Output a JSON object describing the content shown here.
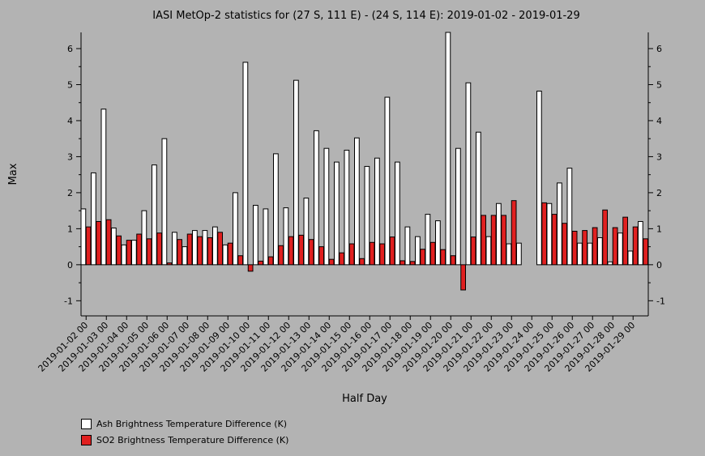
{
  "chart_data": {
    "type": "bar",
    "title": "IASI MetOp-2 statistics for (27 S, 111 E) - (24 S, 114 E): 2019-01-02 - 2019-01-29",
    "xlabel": "Half Day",
    "ylabel": "Max",
    "ylim": [
      -1.42,
      6.45
    ],
    "yticks": [
      -1,
      0,
      1,
      2,
      3,
      4,
      5,
      6
    ],
    "categories": [
      "2019-01-02 00",
      "2019-01-02 12",
      "2019-01-03 00",
      "2019-01-03 12",
      "2019-01-04 00",
      "2019-01-04 12",
      "2019-01-05 00",
      "2019-01-05 12",
      "2019-01-06 00",
      "2019-01-06 12",
      "2019-01-07 00",
      "2019-01-07 12",
      "2019-01-08 00",
      "2019-01-08 12",
      "2019-01-09 00",
      "2019-01-09 12",
      "2019-01-10 00",
      "2019-01-10 12",
      "2019-01-11 00",
      "2019-01-11 12",
      "2019-01-12 00",
      "2019-01-12 12",
      "2019-01-13 00",
      "2019-01-13 12",
      "2019-01-14 00",
      "2019-01-14 12",
      "2019-01-15 00",
      "2019-01-15 12",
      "2019-01-16 00",
      "2019-01-16 12",
      "2019-01-17 00",
      "2019-01-17 12",
      "2019-01-18 00",
      "2019-01-18 12",
      "2019-01-19 00",
      "2019-01-19 12",
      "2019-01-20 00",
      "2019-01-20 12",
      "2019-01-21 00",
      "2019-01-21 12",
      "2019-01-22 00",
      "2019-01-22 12",
      "2019-01-23 00",
      "2019-01-23 12",
      "2019-01-24 00",
      "2019-01-24 12",
      "2019-01-25 00",
      "2019-01-25 12",
      "2019-01-26 00",
      "2019-01-26 12",
      "2019-01-27 00",
      "2019-01-27 12",
      "2019-01-28 00",
      "2019-01-28 12",
      "2019-01-29 00",
      "2019-01-29 12"
    ],
    "xtick_labels": [
      "2019-01-02 00",
      "2019-01-03 00",
      "2019-01-04 00",
      "2019-01-05 00",
      "2019-01-06 00",
      "2019-01-07 00",
      "2019-01-08 00",
      "2019-01-09 00",
      "2019-01-10 00",
      "2019-01-11 00",
      "2019-01-12 00",
      "2019-01-13 00",
      "2019-01-14 00",
      "2019-01-15 00",
      "2019-01-16 00",
      "2019-01-17 00",
      "2019-01-18 00",
      "2019-01-19 00",
      "2019-01-20 00",
      "2019-01-21 00",
      "2019-01-22 00",
      "2019-01-23 00",
      "2019-01-24 00",
      "2019-01-25 00",
      "2019-01-26 00",
      "2019-01-27 00",
      "2019-01-28 00",
      "2019-01-29 00"
    ],
    "series": [
      {
        "name": "Ash Brightness Temperature Difference (K)",
        "color": "#ffffff",
        "values": [
          1.55,
          2.55,
          4.32,
          1.02,
          0.55,
          0.68,
          1.5,
          2.77,
          3.5,
          0.9,
          0.5,
          0.95,
          0.95,
          1.05,
          0.55,
          2.0,
          5.62,
          1.65,
          1.55,
          3.08,
          1.58,
          5.12,
          1.85,
          3.72,
          3.23,
          2.85,
          3.18,
          3.52,
          2.73,
          2.96,
          4.65,
          2.85,
          1.05,
          0.78,
          1.4,
          1.22,
          6.45,
          3.23,
          5.05,
          3.68,
          0.78,
          1.7,
          0.58,
          0.6,
          null,
          4.82,
          1.7,
          2.27,
          2.68,
          0.6,
          0.6,
          0.75,
          0.08,
          0.88,
          0.38,
          1.2
        ]
      },
      {
        "name": "SO2 Brightness Temperature Difference (K)",
        "color": "#e02020",
        "values": [
          1.05,
          1.2,
          1.25,
          0.8,
          0.68,
          0.85,
          0.72,
          0.88,
          0.05,
          0.7,
          0.85,
          0.78,
          0.75,
          0.9,
          0.6,
          0.25,
          -0.18,
          0.1,
          0.22,
          0.53,
          0.78,
          0.82,
          0.7,
          0.5,
          0.15,
          0.33,
          0.58,
          0.17,
          0.62,
          0.58,
          0.77,
          0.11,
          0.09,
          0.43,
          0.62,
          0.42,
          0.25,
          -0.7,
          0.77,
          1.37,
          1.37,
          1.37,
          1.78,
          null,
          null,
          1.72,
          1.4,
          1.15,
          0.93,
          0.95,
          1.03,
          1.52,
          1.03,
          1.32,
          1.05,
          0.72
        ]
      }
    ],
    "legend_position": "bottom-left",
    "grid": false
  }
}
